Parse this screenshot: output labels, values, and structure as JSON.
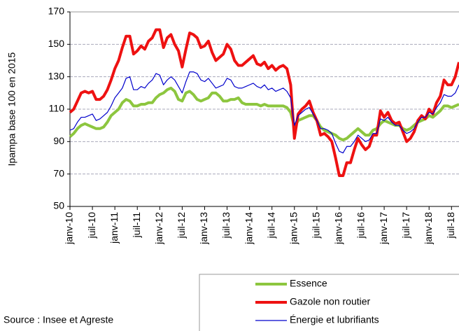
{
  "chart_data": {
    "type": "line",
    "y_label": "Ipampa base 100 en 2015",
    "source": "Source : Insee et Agreste",
    "ylim": [
      50,
      170
    ],
    "yticks": [
      50,
      70,
      90,
      110,
      130,
      150,
      170
    ],
    "grid": true,
    "categories": [
      "janv-10",
      null,
      null,
      null,
      null,
      null,
      "juil-10",
      null,
      null,
      null,
      null,
      null,
      "janv-11",
      null,
      null,
      null,
      null,
      null,
      "juil-11",
      null,
      null,
      null,
      null,
      null,
      "janv-12",
      null,
      null,
      null,
      null,
      null,
      "juil-12",
      null,
      null,
      null,
      null,
      null,
      "janv-13",
      null,
      null,
      null,
      null,
      null,
      "juil-13",
      null,
      null,
      null,
      null,
      null,
      "janv-14",
      null,
      null,
      null,
      null,
      null,
      "juil-14",
      null,
      null,
      null,
      null,
      null,
      "janv-15",
      null,
      null,
      null,
      null,
      null,
      "juil-15",
      null,
      null,
      null,
      null,
      null,
      "janv-16",
      null,
      null,
      null,
      null,
      null,
      "juil-16",
      null,
      null,
      null,
      null,
      null,
      "janv-17",
      null,
      null,
      null,
      null,
      null,
      "juil-17",
      null,
      null,
      null,
      null,
      null,
      "janv-18",
      null,
      null,
      null,
      null,
      null,
      "juil-18",
      null,
      null
    ],
    "series": [
      {
        "name": "Essence",
        "color": "#8dc63f",
        "width": 4,
        "values": [
          93,
          95,
          98,
          100,
          101,
          100,
          99,
          98,
          98,
          99,
          102,
          106,
          108,
          110,
          114,
          116,
          115,
          112,
          112,
          113,
          113,
          114,
          114,
          117,
          119,
          120,
          122,
          123,
          121,
          116,
          115,
          120,
          121,
          119,
          116,
          115,
          116,
          117,
          120,
          120,
          118,
          115,
          115,
          116,
          116,
          117,
          114,
          113,
          113,
          113,
          113,
          112,
          113,
          112,
          112,
          112,
          112,
          112,
          111,
          108,
          99,
          103,
          104,
          105,
          106,
          106,
          103,
          99,
          97,
          96,
          95,
          94,
          92,
          91,
          92,
          94,
          96,
          98,
          96,
          94,
          94,
          97,
          98,
          101,
          103,
          102,
          101,
          100,
          100,
          98,
          97,
          98,
          100,
          102,
          103,
          104,
          106,
          105,
          107,
          109,
          112,
          112,
          111,
          112,
          113
        ]
      },
      {
        "name": "Gazole non routier",
        "color": "#ee1111",
        "width": 4,
        "values": [
          108,
          110,
          115,
          120,
          121,
          120,
          121,
          116,
          116,
          118,
          122,
          128,
          135,
          140,
          148,
          155,
          155,
          144,
          146,
          149,
          147,
          152,
          154,
          159,
          159,
          148,
          154,
          156,
          150,
          146,
          136,
          147,
          157,
          156,
          154,
          148,
          149,
          152,
          145,
          140,
          142,
          144,
          150,
          147,
          140,
          137,
          137,
          139,
          141,
          143,
          138,
          137,
          139,
          135,
          137,
          134,
          136,
          137,
          135,
          125,
          92,
          107,
          110,
          112,
          115,
          108,
          103,
          94,
          95,
          93,
          90,
          80,
          69,
          69,
          77,
          77,
          85,
          92,
          88,
          85,
          87,
          94,
          94,
          109,
          105,
          108,
          103,
          101,
          102,
          96,
          90,
          92,
          96,
          103,
          106,
          104,
          110,
          107,
          114,
          118,
          128,
          125,
          125,
          130,
          139
        ]
      },
      {
        "name": "Énergie et lubrifiants",
        "color": "#0000cc",
        "width": 1.2,
        "values": [
          97,
          98,
          102,
          105,
          105,
          106,
          107,
          103,
          104,
          106,
          108,
          112,
          117,
          120,
          123,
          129,
          130,
          122,
          122,
          124,
          123,
          126,
          128,
          132,
          131,
          125,
          128,
          130,
          128,
          124,
          120,
          127,
          133,
          133,
          132,
          128,
          127,
          129,
          126,
          123,
          124,
          125,
          129,
          128,
          124,
          123,
          123,
          124,
          125,
          126,
          124,
          123,
          125,
          122,
          123,
          121,
          122,
          123,
          121,
          117,
          100,
          106,
          108,
          110,
          111,
          107,
          103,
          98,
          98,
          97,
          95,
          89,
          84,
          83,
          87,
          87,
          90,
          94,
          92,
          90,
          91,
          95,
          95,
          104,
          103,
          105,
          102,
          100,
          100,
          97,
          95,
          96,
          98,
          102,
          105,
          105,
          108,
          107,
          111,
          114,
          119,
          118,
          118,
          120,
          125
        ]
      }
    ]
  }
}
